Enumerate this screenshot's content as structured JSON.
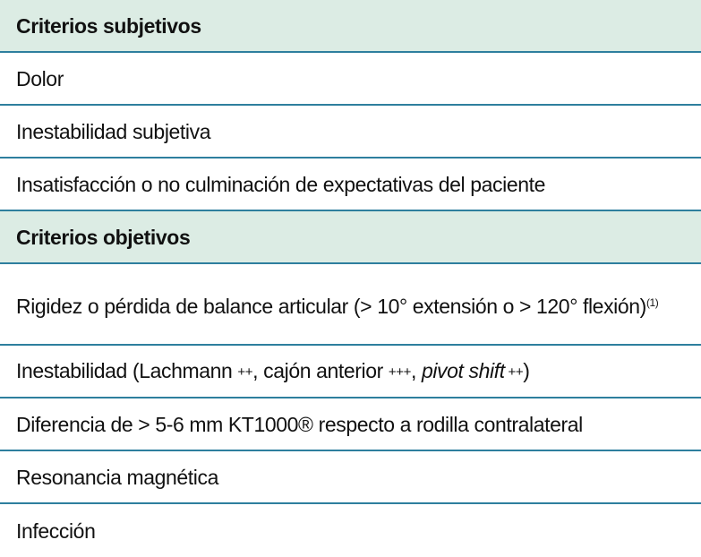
{
  "sections": [
    {
      "title": "Criterios subjetivos",
      "items": [
        "Dolor",
        "Inestabilidad subjetiva",
        "Insatisfacción o no culminación de expectativas del paciente"
      ]
    },
    {
      "title": "Criterios objetivos",
      "items": [
        {
          "text": "Rigidez o pérdida de balance articular (> 10°  extensión o > 120°  flexión)",
          "superscript": "(1)"
        },
        {
          "prefix": "Inestabilidad (Lachmann ",
          "p1": "++",
          "mid": ", cajón anterior ",
          "p2": "+++",
          "sep": ", ",
          "italic": "pivot shift",
          "p3": " ++",
          "suffix": ")"
        },
        "Diferencia de > 5-6 mm KT1000® respecto a rodilla contralateral",
        "Resonancia magnética",
        "Infección"
      ]
    }
  ]
}
